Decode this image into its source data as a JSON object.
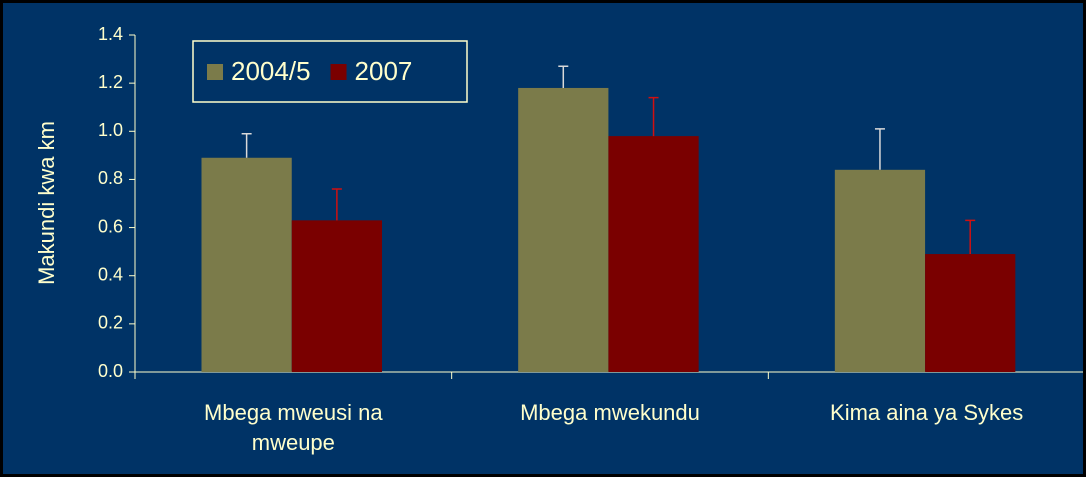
{
  "chart_data": {
    "type": "bar",
    "y_label": "Makundi kwa km",
    "categories": [
      "Mbega mweusi na mweupe",
      "Mbega mwekundu",
      "Kima aina ya Sykes"
    ],
    "series": [
      {
        "name": "2004/5",
        "color": "#7b7b4a",
        "error_color": "#d9d9d9",
        "values": [
          0.89,
          1.18,
          0.84
        ],
        "errors": [
          0.1,
          0.09,
          0.17
        ]
      },
      {
        "name": "2007",
        "color": "#7a0000",
        "error_color": "#d01010",
        "values": [
          0.63,
          0.98,
          0.49
        ],
        "errors": [
          0.13,
          0.16,
          0.14
        ]
      }
    ],
    "ylim": [
      0,
      1.4
    ],
    "yticks": [
      {
        "value": 0,
        "label": "0.0"
      },
      0.2,
      0.4,
      0.6,
      0.8,
      {
        "value": 1,
        "label": "1.0"
      },
      1.2,
      1.4
    ],
    "legend": "top-left"
  }
}
